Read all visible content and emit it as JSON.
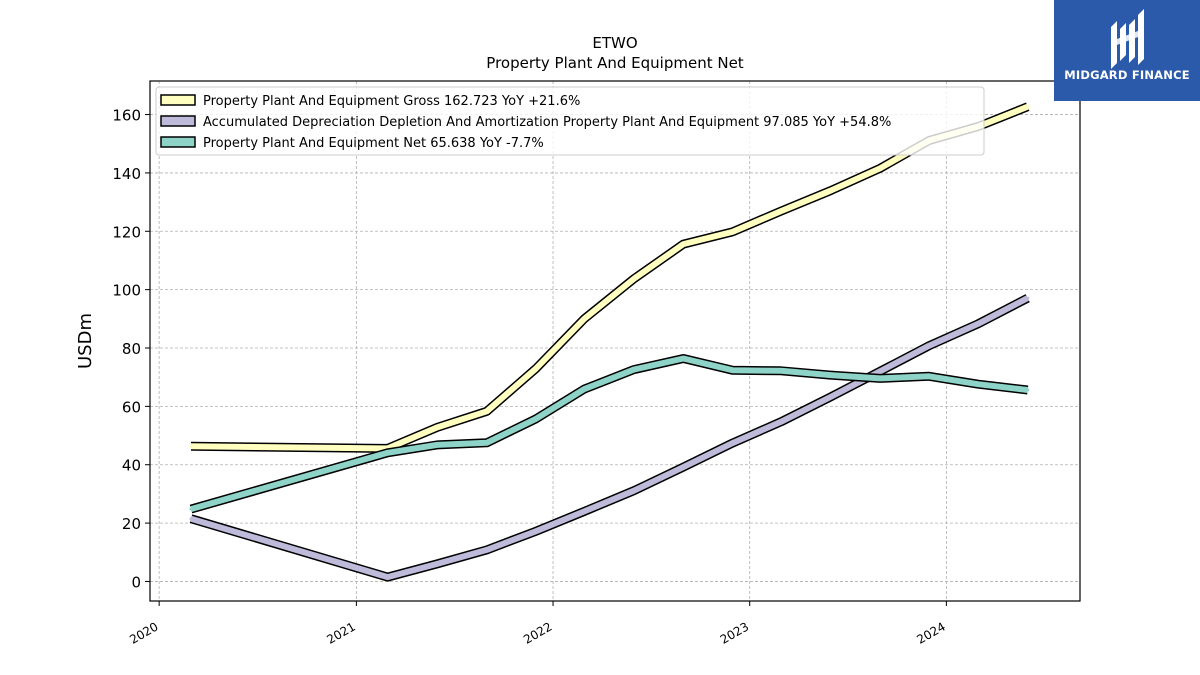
{
  "chart_data": {
    "type": "line",
    "title": "ETWO",
    "subtitle": "Property Plant And Equipment Net",
    "ylabel": "USDm",
    "xlabel": "",
    "xlim": [
      "2019-12-15",
      "2024-09-05"
    ],
    "ylim": [
      -6.7,
      171.5
    ],
    "grid": true,
    "legend_position": "top-left",
    "x_ticks": [
      "2020",
      "2021",
      "2022",
      "2023",
      "2024"
    ],
    "y_ticks": [
      0,
      20,
      40,
      60,
      80,
      100,
      120,
      140,
      160
    ],
    "series": [
      {
        "name": "Property Plant And Equipment Gross",
        "legend": "Property Plant And Equipment Gross  162.723 YoY +21.6%",
        "color": "#ffffbf",
        "x": [
          "2020-02-29",
          "2021-02-28",
          "2021-05-31",
          "2021-08-31",
          "2021-11-30",
          "2022-02-28",
          "2022-05-31",
          "2022-08-31",
          "2022-11-30",
          "2023-02-28",
          "2023-05-31",
          "2023-08-31",
          "2023-11-30",
          "2024-02-29",
          "2024-05-31"
        ],
        "values": [
          46.3,
          45.6,
          52.8,
          58.3,
          72.9,
          90.0,
          103.7,
          115.6,
          119.8,
          126.9,
          133.9,
          141.6,
          151.1,
          155.9,
          162.7
        ]
      },
      {
        "name": "Accumulated Depreciation Depletion And Amortization Property Plant And Equipment",
        "legend": "Accumulated Depreciation Depletion And Amortization Property Plant And Equipment  97.085 YoY +54.8%",
        "color": "#bebada",
        "x": [
          "2020-02-29",
          "2021-02-28",
          "2021-05-31",
          "2021-08-31",
          "2021-11-30",
          "2022-02-28",
          "2022-05-31",
          "2022-08-31",
          "2022-11-30",
          "2023-02-28",
          "2023-05-31",
          "2023-08-31",
          "2023-11-30",
          "2024-02-29",
          "2024-05-31"
        ],
        "values": [
          21.5,
          1.5,
          6.0,
          10.8,
          17.2,
          24.0,
          31.1,
          39.2,
          47.4,
          54.7,
          63.2,
          72.0,
          80.8,
          88.3,
          97.1
        ]
      },
      {
        "name": "Property Plant And Equipment Net",
        "legend": "Property Plant And Equipment Net  65.638 YoY -7.7%",
        "color": "#8dd3c7",
        "x": [
          "2020-02-29",
          "2021-02-28",
          "2021-05-31",
          "2021-08-31",
          "2021-11-30",
          "2022-02-28",
          "2022-05-31",
          "2022-08-31",
          "2022-11-30",
          "2023-02-28",
          "2023-05-31",
          "2023-08-31",
          "2023-11-30",
          "2024-02-29",
          "2024-05-31"
        ],
        "values": [
          24.8,
          44.1,
          46.8,
          47.5,
          55.7,
          65.9,
          72.6,
          76.4,
          72.4,
          72.2,
          70.7,
          69.6,
          70.3,
          67.6,
          65.6
        ]
      }
    ]
  },
  "logo": {
    "text": "MIDGARD FINANCE",
    "background": "#2b5aab"
  }
}
